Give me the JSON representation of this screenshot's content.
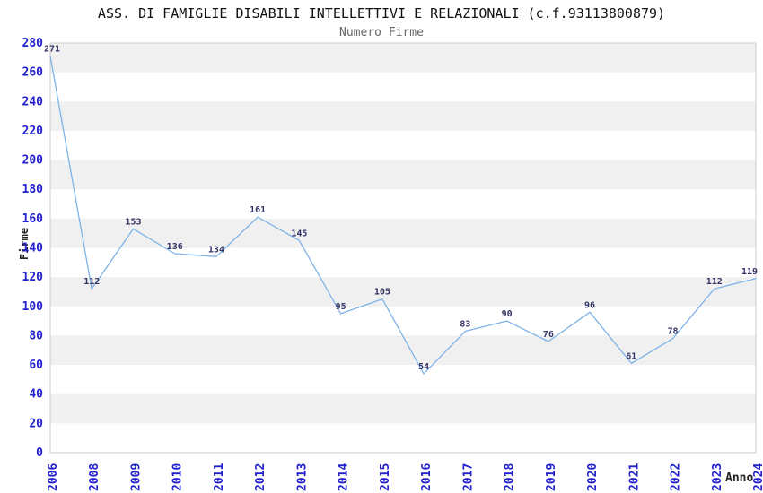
{
  "chart_data": {
    "type": "line",
    "title": "ASS. DI FAMIGLIE DISABILI INTELLETTIVI E RELAZIONALI (c.f.93113800879)",
    "subtitle": "Numero Firme",
    "xlabel": "Anno",
    "ylabel": "Firme",
    "categories": [
      "2006",
      "2008",
      "2009",
      "2010",
      "2011",
      "2012",
      "2013",
      "2014",
      "2015",
      "2016",
      "2017",
      "2018",
      "2019",
      "2020",
      "2021",
      "2022",
      "2023",
      "2024"
    ],
    "values": [
      271,
      112,
      153,
      136,
      134,
      161,
      145,
      95,
      105,
      54,
      83,
      90,
      76,
      96,
      61,
      78,
      112,
      119
    ],
    "point_labels": [
      "271",
      "112",
      "153",
      "136",
      "134",
      "161",
      "145",
      "95",
      "105",
      "54",
      "83",
      "90",
      "76",
      "96",
      "61",
      "78",
      "112",
      "119"
    ],
    "ylim": [
      0,
      280
    ],
    "ytick_step": 20,
    "ytick_labels": [
      "0",
      "20",
      "40",
      "60",
      "80",
      "100",
      "120",
      "140",
      "160",
      "180",
      "200",
      "220",
      "240",
      "260",
      "280"
    ],
    "band_period": 40,
    "grid": "alternating-horizontal-bands",
    "legend": "none",
    "colors": {
      "line": "#7eb3e8",
      "tick_label": "#2222cc",
      "data_label": "#333366",
      "band": "#f0f0f0",
      "plot_border": "#cccccc",
      "title": "#111111",
      "subtitle": "#666666",
      "axis_title": "#222222",
      "background": "#ffffff"
    }
  }
}
